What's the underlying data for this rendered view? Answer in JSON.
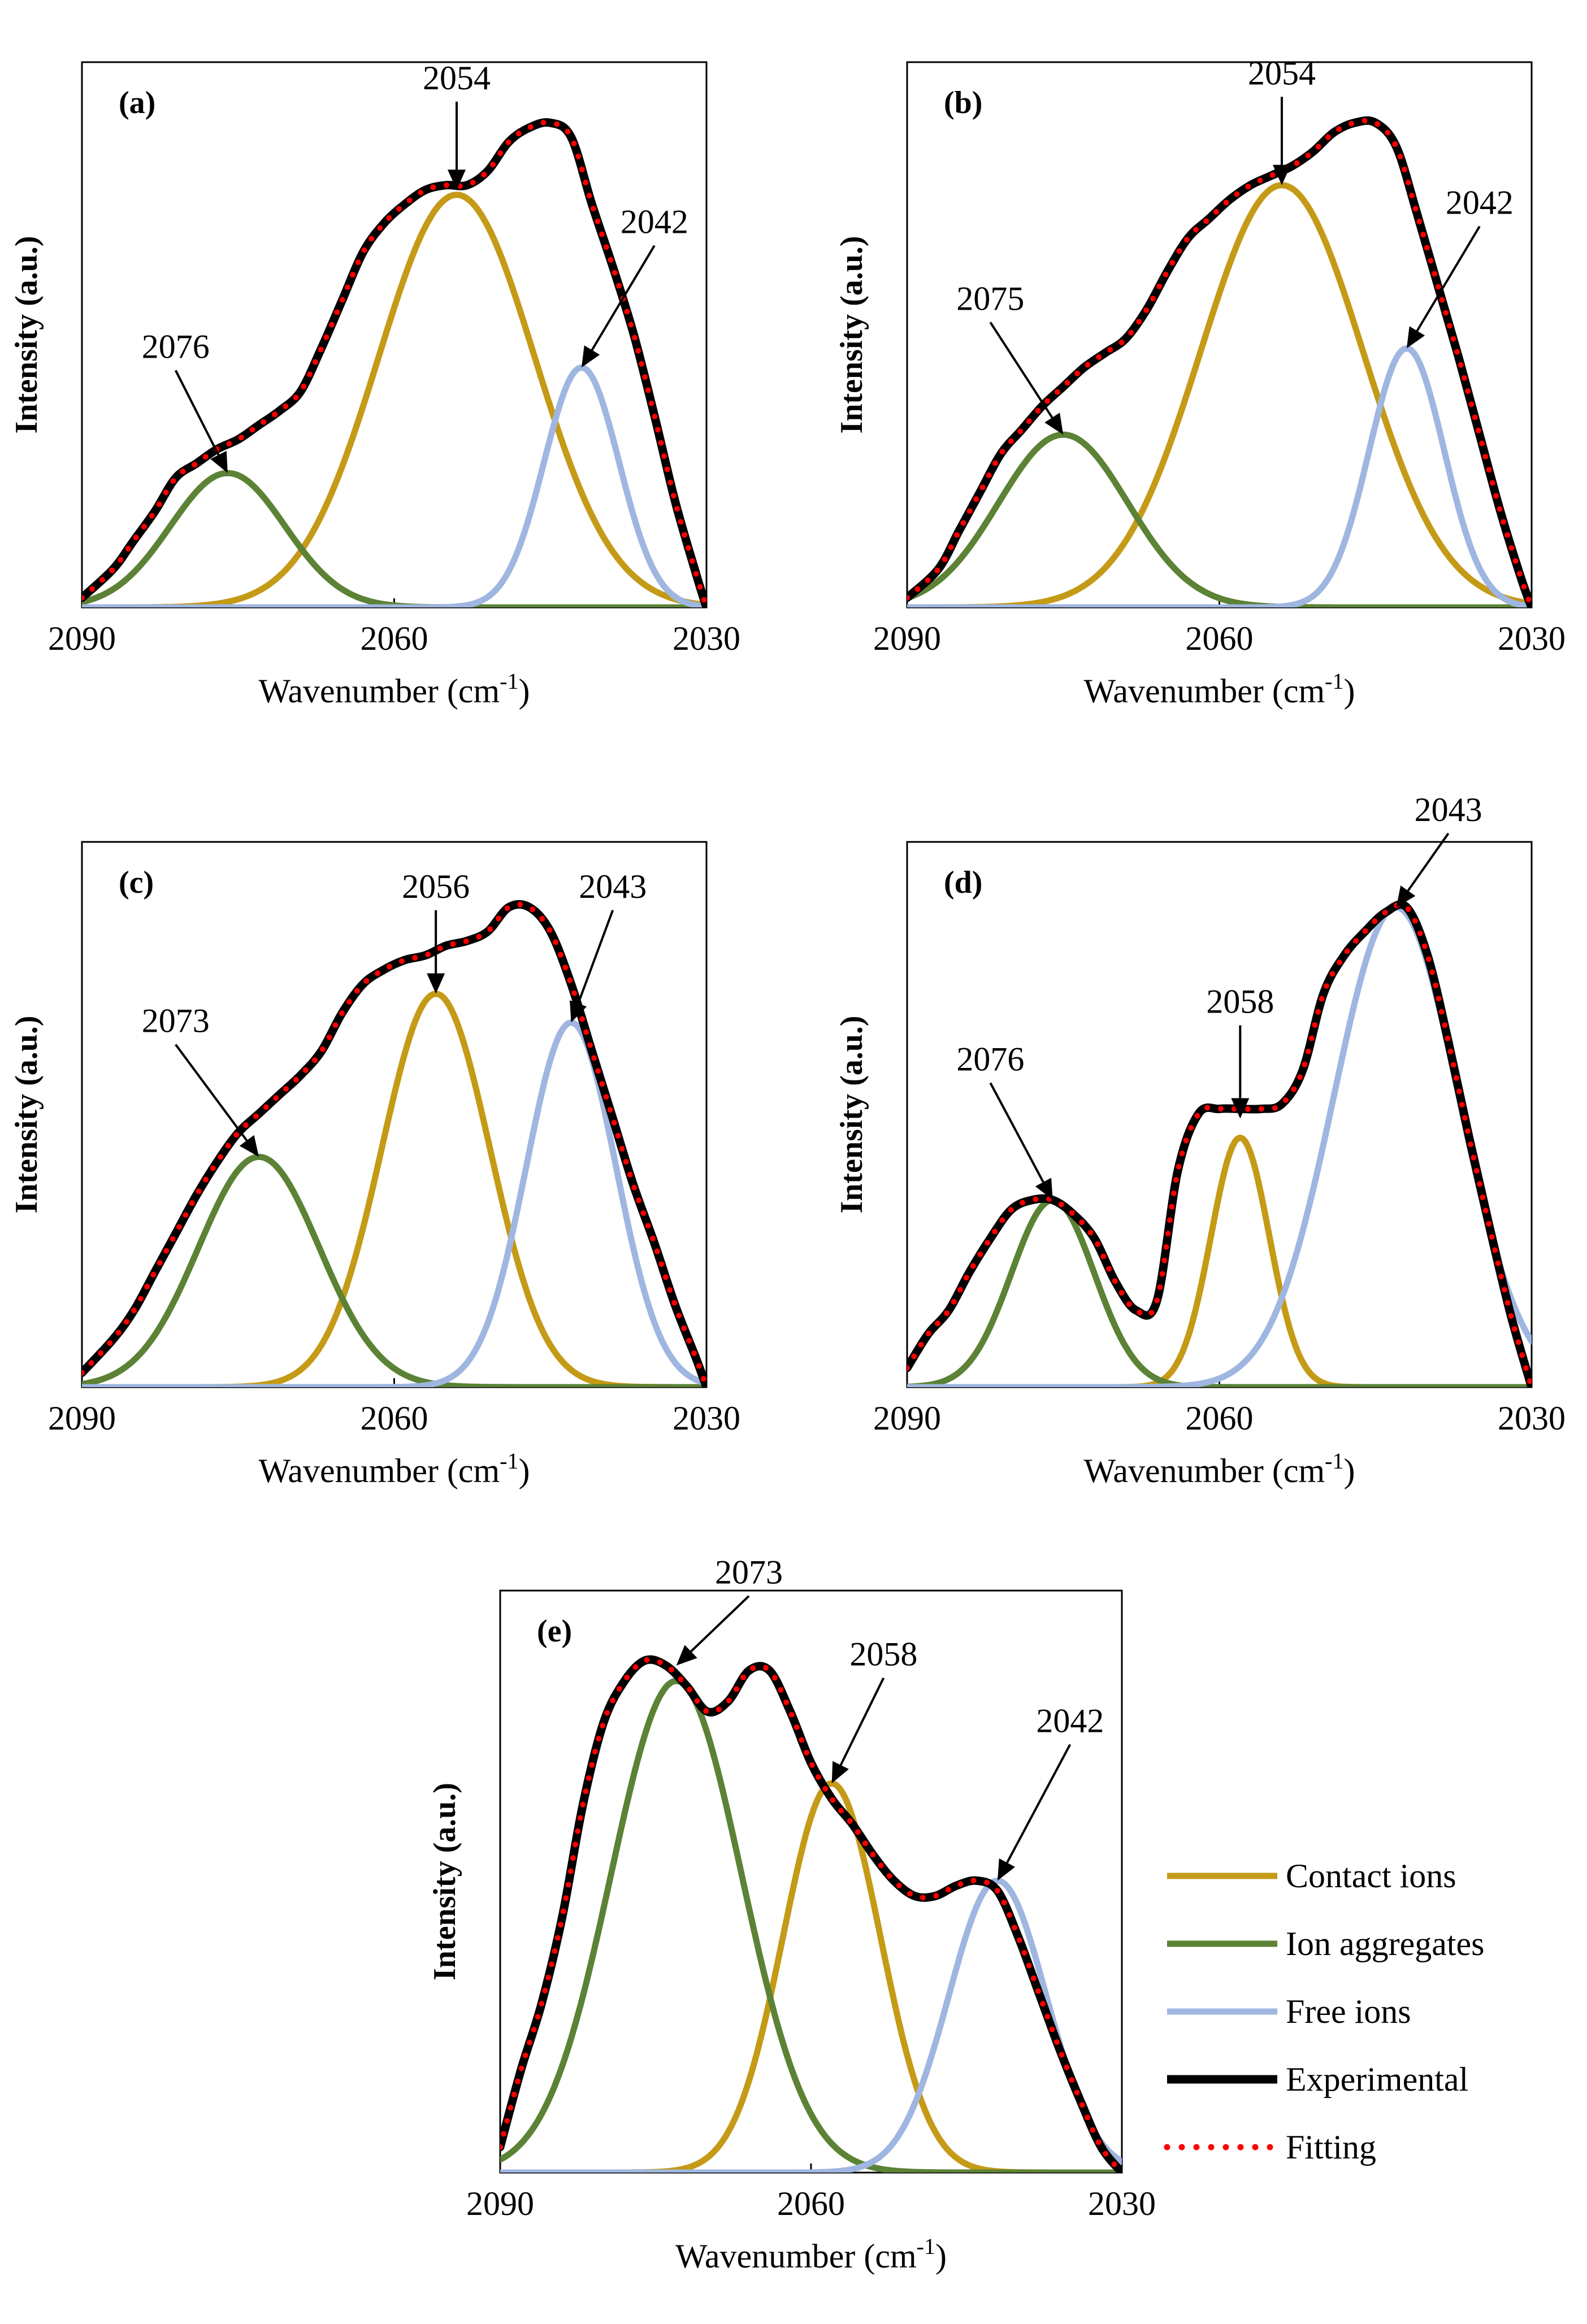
{
  "chart_data": [
    {
      "type": "line",
      "panel_label": "(a)",
      "xlabel": "Wavenumber (cm",
      "xlabel_sup": "-1",
      "xlabel_close": ")",
      "ylabel": "Intensity (a.u.)",
      "xlim": [
        2090,
        2030
      ],
      "ylim": [
        0,
        1.0
      ],
      "xticks": [
        "2090",
        "2060",
        "2030"
      ],
      "components": [
        {
          "name": "Contact ions",
          "center": 2054,
          "amp": 0.86,
          "sigma": 7.5
        },
        {
          "name": "Ion aggregates",
          "center": 2076,
          "amp": 0.28,
          "sigma": 5.5
        },
        {
          "name": "Free ions",
          "center": 2042,
          "amp": 0.5,
          "sigma": 3.6
        }
      ],
      "experimental": {
        "x": [
          2090,
          2087,
          2085,
          2083,
          2081,
          2079,
          2077,
          2075,
          2073,
          2071,
          2069,
          2067,
          2065,
          2063,
          2061,
          2059,
          2057,
          2055,
          2053,
          2051,
          2049,
          2047,
          2045,
          2043,
          2041,
          2039,
          2037,
          2035,
          2033,
          2031,
          2030
        ],
        "y": [
          0.02,
          0.08,
          0.14,
          0.2,
          0.27,
          0.3,
          0.33,
          0.35,
          0.38,
          0.41,
          0.45,
          0.54,
          0.64,
          0.74,
          0.8,
          0.84,
          0.87,
          0.88,
          0.88,
          0.91,
          0.97,
          1.0,
          1.01,
          0.98,
          0.84,
          0.71,
          0.57,
          0.4,
          0.22,
          0.07,
          0.0
        ]
      },
      "annotations": [
        {
          "text": "2076",
          "x": 2076,
          "y": 0.28,
          "tx": 2081,
          "ty": 0.52
        },
        {
          "text": "2054",
          "x": 2054,
          "y": 0.87,
          "tx": 2054,
          "ty": 1.08
        },
        {
          "text": "2042",
          "x": 2042,
          "y": 0.5,
          "tx": 2035,
          "ty": 0.78
        }
      ]
    },
    {
      "type": "line",
      "panel_label": "(b)",
      "xlabel": "Wavenumber (cm",
      "xlabel_sup": "-1",
      "xlabel_close": ")",
      "ylabel": "Intensity (a.u.)",
      "xlim": [
        2090,
        2030
      ],
      "ylim": [
        0,
        1.0
      ],
      "xticks": [
        "2090",
        "2060",
        "2030"
      ],
      "components": [
        {
          "name": "Contact ions",
          "center": 2054,
          "amp": 0.88,
          "sigma": 7.8
        },
        {
          "name": "Ion aggregates",
          "center": 2075,
          "amp": 0.36,
          "sigma": 6.2
        },
        {
          "name": "Free ions",
          "center": 2042,
          "amp": 0.54,
          "sigma": 3.6
        }
      ],
      "experimental": {
        "x": [
          2090,
          2087,
          2085,
          2083,
          2081,
          2079,
          2077,
          2075,
          2073,
          2071,
          2069,
          2067,
          2065,
          2063,
          2061,
          2059,
          2057,
          2055,
          2053,
          2051,
          2049,
          2047,
          2045,
          2043,
          2041,
          2039,
          2037,
          2035,
          2033,
          2031,
          2030
        ],
        "y": [
          0.02,
          0.08,
          0.16,
          0.24,
          0.32,
          0.37,
          0.42,
          0.46,
          0.5,
          0.53,
          0.56,
          0.62,
          0.7,
          0.77,
          0.81,
          0.85,
          0.88,
          0.9,
          0.92,
          0.95,
          0.99,
          1.01,
          1.01,
          0.96,
          0.82,
          0.67,
          0.52,
          0.36,
          0.2,
          0.06,
          0.0
        ]
      },
      "annotations": [
        {
          "text": "2075",
          "x": 2075,
          "y": 0.36,
          "tx": 2082,
          "ty": 0.62
        },
        {
          "text": "2054",
          "x": 2054,
          "y": 0.88,
          "tx": 2054,
          "ty": 1.09
        },
        {
          "text": "2042",
          "x": 2042,
          "y": 0.54,
          "tx": 2035,
          "ty": 0.82
        }
      ]
    },
    {
      "type": "line",
      "panel_label": "(c)",
      "xlabel": "Wavenumber (cm",
      "xlabel_sup": "-1",
      "xlabel_close": ")",
      "ylabel": "Intensity (a.u.)",
      "xlim": [
        2090,
        2030
      ],
      "ylim": [
        0,
        1.0
      ],
      "xticks": [
        "2090",
        "2060",
        "2030"
      ],
      "components": [
        {
          "name": "Contact ions",
          "center": 2056,
          "amp": 0.82,
          "sigma": 5.2
        },
        {
          "name": "Ion aggregates",
          "center": 2073,
          "amp": 0.48,
          "sigma": 5.8
        },
        {
          "name": "Free ions",
          "center": 2043,
          "amp": 0.76,
          "sigma": 4.3
        }
      ],
      "experimental": {
        "x": [
          2090,
          2087,
          2085,
          2083,
          2081,
          2079,
          2077,
          2075,
          2073,
          2071,
          2069,
          2067,
          2065,
          2063,
          2061,
          2059,
          2057,
          2055,
          2053,
          2051,
          2049,
          2047,
          2045,
          2043,
          2041,
          2039,
          2037,
          2035,
          2033,
          2031,
          2030
        ],
        "y": [
          0.03,
          0.1,
          0.16,
          0.24,
          0.32,
          0.4,
          0.47,
          0.53,
          0.57,
          0.61,
          0.65,
          0.7,
          0.78,
          0.84,
          0.87,
          0.89,
          0.9,
          0.92,
          0.93,
          0.95,
          1.0,
          1.0,
          0.95,
          0.84,
          0.7,
          0.56,
          0.42,
          0.3,
          0.17,
          0.06,
          0.0
        ]
      },
      "annotations": [
        {
          "text": "2073",
          "x": 2073,
          "y": 0.48,
          "tx": 2081,
          "ty": 0.74
        },
        {
          "text": "2056",
          "x": 2056,
          "y": 0.82,
          "tx": 2056,
          "ty": 1.02
        },
        {
          "text": "2043",
          "x": 2043,
          "y": 0.76,
          "tx": 2039,
          "ty": 1.02
        }
      ]
    },
    {
      "type": "line",
      "panel_label": "(d)",
      "xlabel": "Wavenumber (cm",
      "xlabel_sup": "-1",
      "xlabel_close": ")",
      "ylabel": "Intensity (a.u.)",
      "xlim": [
        2090,
        2030
      ],
      "ylim": [
        0,
        1.0
      ],
      "xticks": [
        "2090",
        "2060",
        "2030"
      ],
      "components": [
        {
          "name": "Contact ions",
          "center": 2058,
          "amp": 0.52,
          "sigma": 2.8
        },
        {
          "name": "Ion aggregates",
          "center": 2076,
          "amp": 0.39,
          "sigma": 4.0
        },
        {
          "name": "Free ions",
          "center": 2043,
          "amp": 1.0,
          "sigma": 6.0
        }
      ],
      "experimental": {
        "x": [
          2090,
          2088,
          2086,
          2084,
          2082,
          2080,
          2078,
          2076,
          2074,
          2072,
          2070,
          2068,
          2066,
          2064,
          2062,
          2060,
          2058,
          2056,
          2054,
          2052,
          2050,
          2048,
          2046,
          2044,
          2042,
          2040,
          2038,
          2036,
          2034,
          2032,
          2030
        ],
        "y": [
          0.04,
          0.11,
          0.16,
          0.24,
          0.31,
          0.37,
          0.39,
          0.39,
          0.36,
          0.31,
          0.22,
          0.16,
          0.18,
          0.45,
          0.57,
          0.58,
          0.58,
          0.58,
          0.59,
          0.66,
          0.82,
          0.9,
          0.95,
          0.99,
          1.0,
          0.9,
          0.72,
          0.52,
          0.33,
          0.15,
          0.0
        ]
      },
      "annotations": [
        {
          "text": "2076",
          "x": 2076,
          "y": 0.39,
          "tx": 2082,
          "ty": 0.66
        },
        {
          "text": "2058",
          "x": 2058,
          "y": 0.56,
          "tx": 2058,
          "ty": 0.78
        },
        {
          "text": "2043",
          "x": 2043,
          "y": 1.0,
          "tx": 2038,
          "ty": 1.18
        }
      ]
    },
    {
      "type": "line",
      "panel_label": "(e)",
      "xlabel": "Wavenumber (cm",
      "xlabel_sup": "-1",
      "xlabel_close": ")",
      "ylabel": "Intensity (a.u.)",
      "xlim": [
        2090,
        2030
      ],
      "ylim": [
        0,
        1.0
      ],
      "xticks": [
        "2090",
        "2060",
        "2030"
      ],
      "components": [
        {
          "name": "Contact ions",
          "center": 2058,
          "amp": 0.76,
          "sigma": 4.7
        },
        {
          "name": "Ion aggregates",
          "center": 2073,
          "amp": 0.96,
          "sigma": 6.3
        },
        {
          "name": "Free ions",
          "center": 2042,
          "amp": 0.57,
          "sigma": 4.7
        }
      ],
      "experimental": {
        "x": [
          2090,
          2088,
          2086,
          2084,
          2082,
          2080,
          2078,
          2076,
          2074,
          2072,
          2070,
          2068,
          2066,
          2064,
          2062,
          2060,
          2058,
          2056,
          2054,
          2052,
          2050,
          2048,
          2046,
          2044,
          2042,
          2040,
          2038,
          2036,
          2034,
          2032,
          2030
        ],
        "y": [
          0.05,
          0.2,
          0.33,
          0.5,
          0.72,
          0.88,
          0.96,
          1.0,
          0.99,
          0.95,
          0.9,
          0.92,
          0.98,
          0.98,
          0.9,
          0.8,
          0.73,
          0.68,
          0.62,
          0.57,
          0.54,
          0.54,
          0.56,
          0.57,
          0.55,
          0.46,
          0.35,
          0.24,
          0.14,
          0.05,
          0.0
        ]
      },
      "annotations": [
        {
          "text": "2073",
          "x": 2073,
          "y": 0.99,
          "tx": 2066,
          "ty": 1.15
        },
        {
          "text": "2058",
          "x": 2058,
          "y": 0.76,
          "tx": 2053,
          "ty": 0.99
        },
        {
          "text": "2042",
          "x": 2042,
          "y": 0.57,
          "tx": 2035,
          "ty": 0.86
        }
      ]
    }
  ],
  "legend": {
    "entries": [
      {
        "name": "Contact ions",
        "color": "#c49a17",
        "style": "solid"
      },
      {
        "name": "Ion aggregates",
        "color": "#5b8235",
        "style": "solid"
      },
      {
        "name": "Free ions",
        "color": "#9fb6e0",
        "style": "solid"
      },
      {
        "name": "Experimental",
        "color": "#000000",
        "style": "solid"
      },
      {
        "name": "Fitting",
        "color": "#ff0000",
        "style": "dotted"
      }
    ]
  },
  "colors": {
    "contact": "#c49a17",
    "aggregate": "#5b8235",
    "free": "#9fb6e0",
    "experimental": "#000000",
    "fitting": "#ff0000"
  }
}
